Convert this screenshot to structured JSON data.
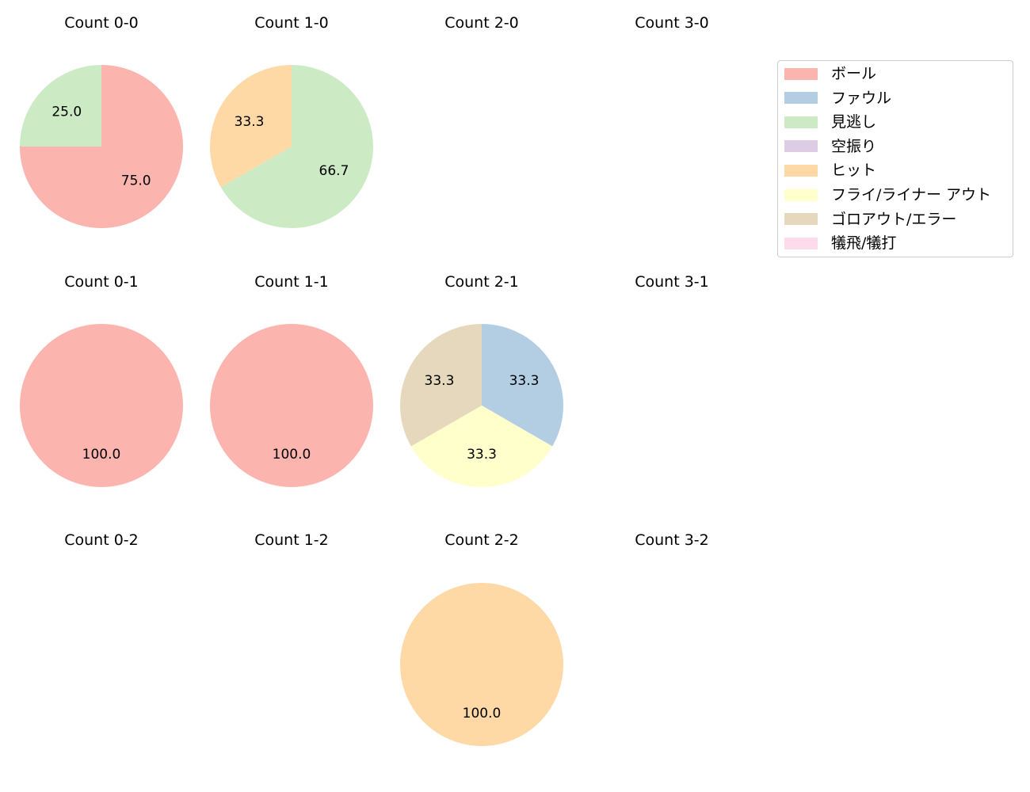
{
  "chart_data": {
    "type": "pie",
    "layout": {
      "rows": 3,
      "cols": 4,
      "start_angle": "12 o'clock",
      "direction": "clockwise",
      "label_format": "%.1f"
    },
    "legend": {
      "position": "upper right",
      "entries": [
        {
          "label": "ボール",
          "color": "#fbb4ae"
        },
        {
          "label": "ファウル",
          "color": "#b3cde3"
        },
        {
          "label": "見逃し",
          "color": "#ccebc5"
        },
        {
          "label": "空振り",
          "color": "#decbe4"
        },
        {
          "label": "ヒット",
          "color": "#fed9a6"
        },
        {
          "label": "フライ/ライナー アウト",
          "color": "#ffffcc"
        },
        {
          "label": "ゴロアウト/エラー",
          "color": "#e5d8bd"
        },
        {
          "label": "犠飛/犠打",
          "color": "#fddaec"
        }
      ]
    },
    "subplots": [
      {
        "title": "Count 0-0",
        "row": 0,
        "col": 0,
        "slices": [
          {
            "category": "ボール",
            "value": 75.0
          },
          {
            "category": "見逃し",
            "value": 25.0
          }
        ]
      },
      {
        "title": "Count 1-0",
        "row": 0,
        "col": 1,
        "slices": [
          {
            "category": "見逃し",
            "value": 66.7
          },
          {
            "category": "ヒット",
            "value": 33.3
          }
        ]
      },
      {
        "title": "Count 2-0",
        "row": 0,
        "col": 2,
        "slices": []
      },
      {
        "title": "Count 3-0",
        "row": 0,
        "col": 3,
        "slices": []
      },
      {
        "title": "Count 0-1",
        "row": 1,
        "col": 0,
        "slices": [
          {
            "category": "ボール",
            "value": 100.0
          }
        ]
      },
      {
        "title": "Count 1-1",
        "row": 1,
        "col": 1,
        "slices": [
          {
            "category": "ボール",
            "value": 100.0
          }
        ]
      },
      {
        "title": "Count 2-1",
        "row": 1,
        "col": 2,
        "slices": [
          {
            "category": "ファウル",
            "value": 33.3
          },
          {
            "category": "フライ/ライナー アウト",
            "value": 33.3
          },
          {
            "category": "ゴロアウト/エラー",
            "value": 33.3
          }
        ]
      },
      {
        "title": "Count 3-1",
        "row": 1,
        "col": 3,
        "slices": []
      },
      {
        "title": "Count 0-2",
        "row": 2,
        "col": 0,
        "slices": []
      },
      {
        "title": "Count 1-2",
        "row": 2,
        "col": 1,
        "slices": []
      },
      {
        "title": "Count 2-2",
        "row": 2,
        "col": 2,
        "slices": [
          {
            "category": "ヒット",
            "value": 100.0
          }
        ]
      },
      {
        "title": "Count 3-2",
        "row": 2,
        "col": 3,
        "slices": []
      }
    ]
  }
}
